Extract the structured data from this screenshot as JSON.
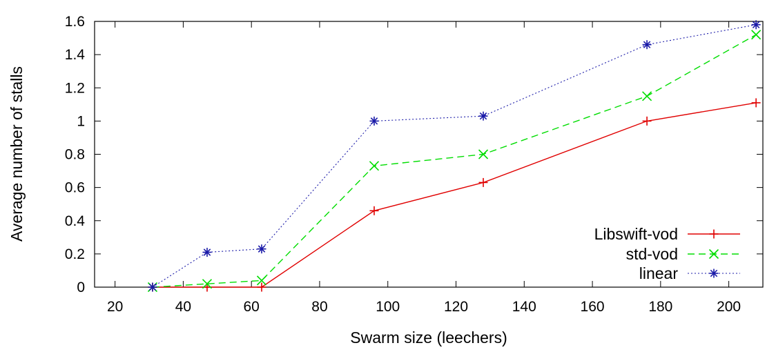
{
  "chart_data": {
    "type": "line",
    "title": "",
    "xlabel": "Swarm size (leechers)",
    "ylabel": "Average number of stalls",
    "xlim": [
      14,
      210
    ],
    "ylim": [
      0,
      1.6
    ],
    "xticks": [
      20,
      40,
      60,
      80,
      100,
      120,
      140,
      160,
      180,
      200
    ],
    "yticks": [
      0,
      0.2,
      0.4,
      0.6,
      0.8,
      1,
      1.2,
      1.4,
      1.6
    ],
    "grid": false,
    "legend_position": "bottom-right",
    "series": [
      {
        "name": "Libswift-vod",
        "color": "#e00000",
        "line_style": "solid",
        "marker": "plus",
        "x": [
          31,
          47,
          63,
          96,
          128,
          176,
          208
        ],
        "y": [
          0,
          0,
          0,
          0.46,
          0.63,
          1.0,
          1.11
        ]
      },
      {
        "name": "std-vod",
        "color": "#00dd00",
        "line_style": "dashed",
        "marker": "cross",
        "x": [
          31,
          47,
          63,
          96,
          128,
          176,
          208
        ],
        "y": [
          0,
          0.02,
          0.04,
          0.73,
          0.8,
          1.15,
          1.52
        ]
      },
      {
        "name": "linear",
        "color": "#1a1aa8",
        "line_style": "dotted",
        "marker": "star",
        "x": [
          31,
          47,
          63,
          96,
          128,
          176,
          208
        ],
        "y": [
          0,
          0.21,
          0.23,
          1.0,
          1.03,
          1.46,
          1.58
        ]
      }
    ]
  }
}
